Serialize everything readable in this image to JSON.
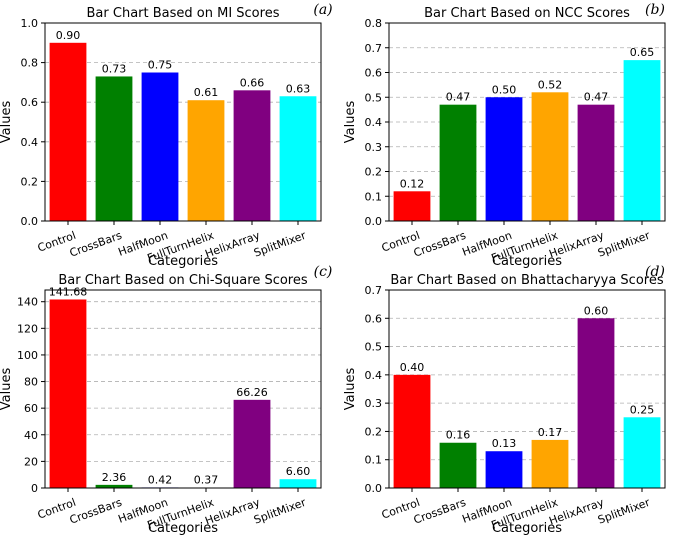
{
  "chart_data": [
    {
      "type": "bar",
      "panel_label": "(a)",
      "title": "Bar Chart Based on MI Scores",
      "xlabel": "Categories",
      "ylabel": "Values",
      "categories": [
        "Control",
        "CrossBars",
        "HalfMoon",
        "FullTurnHelix",
        "HelixArray",
        "SplitMixer"
      ],
      "values": [
        0.9,
        0.73,
        0.75,
        0.61,
        0.66,
        0.63
      ],
      "value_labels": [
        "0.90",
        "0.73",
        "0.75",
        "0.61",
        "0.66",
        "0.63"
      ],
      "colors": [
        "#ff0000",
        "#008000",
        "#0000ff",
        "#ffa500",
        "#800080",
        "#00ffff"
      ],
      "ylim": [
        0,
        1.0
      ],
      "yticks": [
        0,
        0.2,
        0.4,
        0.6,
        0.8,
        1.0
      ],
      "ytick_labels": [
        "0.0",
        "0.2",
        "0.4",
        "0.6",
        "0.8",
        "1.0"
      ],
      "grid": true
    },
    {
      "type": "bar",
      "panel_label": "(b)",
      "title": "Bar Chart Based on NCC Scores",
      "xlabel": "Categories",
      "ylabel": "Values",
      "categories": [
        "Control",
        "CrossBars",
        "HalfMoon",
        "FullTurnHelix",
        "HelixArray",
        "SplitMixer"
      ],
      "values": [
        0.12,
        0.47,
        0.5,
        0.52,
        0.47,
        0.65
      ],
      "value_labels": [
        "0.12",
        "0.47",
        "0.50",
        "0.52",
        "0.47",
        "0.65"
      ],
      "colors": [
        "#ff0000",
        "#008000",
        "#0000ff",
        "#ffa500",
        "#800080",
        "#00ffff"
      ],
      "ylim": [
        0,
        0.8
      ],
      "yticks": [
        0,
        0.1,
        0.2,
        0.3,
        0.4,
        0.5,
        0.6,
        0.7,
        0.8
      ],
      "ytick_labels": [
        "0.0",
        "0.1",
        "0.2",
        "0.3",
        "0.4",
        "0.5",
        "0.6",
        "0.7",
        "0.8"
      ],
      "grid": true
    },
    {
      "type": "bar",
      "panel_label": "(c)",
      "title": "Bar Chart Based on Chi-Square Scores",
      "xlabel": "Categories",
      "ylabel": "Values",
      "categories": [
        "Control",
        "CrossBars",
        "HalfMoon",
        "FullTurnHelix",
        "HelixArray",
        "SplitMixer"
      ],
      "values": [
        141.68,
        2.36,
        0.42,
        0.37,
        66.26,
        6.6
      ],
      "value_labels": [
        "141.68",
        "2.36",
        "0.42",
        "0.37",
        "66.26",
        "6.60"
      ],
      "colors": [
        "#ff0000",
        "#008000",
        "#0000ff",
        "#ffa500",
        "#800080",
        "#00ffff"
      ],
      "ylim": [
        0,
        148.8
      ],
      "yticks": [
        0,
        20,
        40,
        60,
        80,
        100,
        120,
        140
      ],
      "ytick_labels": [
        "0",
        "20",
        "40",
        "60",
        "80",
        "100",
        "120",
        "140"
      ],
      "grid": true
    },
    {
      "type": "bar",
      "panel_label": "(d)",
      "title": "Bar Chart Based on Bhattacharyya Scores",
      "xlabel": "Categories",
      "ylabel": "Values",
      "categories": [
        "Control",
        "CrossBars",
        "HalfMoon",
        "FullTurnHelix",
        "HelixArray",
        "SplitMixer"
      ],
      "values": [
        0.4,
        0.16,
        0.13,
        0.17,
        0.6,
        0.25
      ],
      "value_labels": [
        "0.40",
        "0.16",
        "0.13",
        "0.17",
        "0.60",
        "0.25"
      ],
      "colors": [
        "#ff0000",
        "#008000",
        "#0000ff",
        "#ffa500",
        "#800080",
        "#00ffff"
      ],
      "ylim": [
        0,
        0.7
      ],
      "yticks": [
        0,
        0.1,
        0.2,
        0.3,
        0.4,
        0.5,
        0.6,
        0.7
      ],
      "ytick_labels": [
        "0.0",
        "0.1",
        "0.2",
        "0.3",
        "0.4",
        "0.5",
        "0.6",
        "0.7"
      ],
      "grid": true
    }
  ]
}
